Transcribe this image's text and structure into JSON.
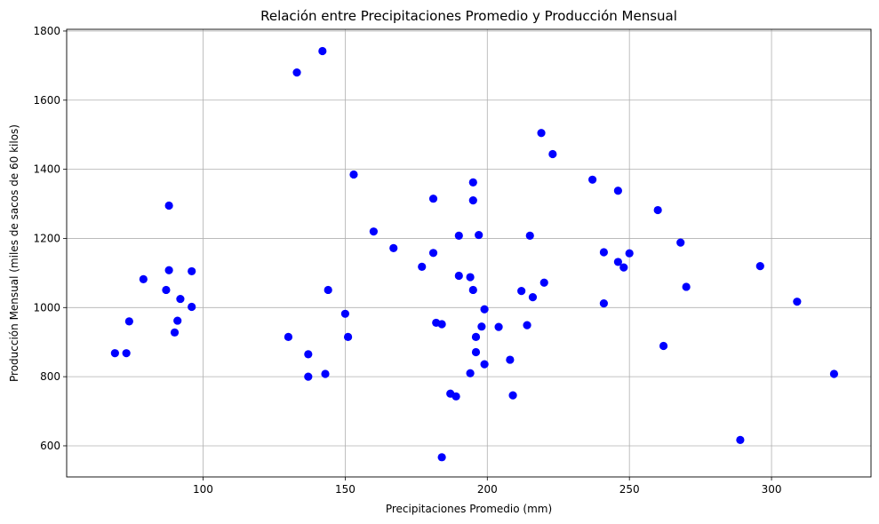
{
  "chart_data": {
    "type": "scatter",
    "title": "Relación entre Precipitaciones Promedio y Producción Mensual",
    "xlabel": "Precipitaciones Promedio (mm)",
    "ylabel": "Producción Mensual (miles de sacos de 60 kilos)",
    "xlim": [
      52,
      335
    ],
    "ylim": [
      510,
      1805
    ],
    "xticks": [
      100,
      150,
      200,
      250,
      300
    ],
    "yticks": [
      600,
      800,
      1000,
      1200,
      1400,
      1600,
      1800
    ],
    "grid": true,
    "color": "#0000ff",
    "points": [
      [
        69,
        868
      ],
      [
        73,
        868
      ],
      [
        74,
        960
      ],
      [
        79,
        1082
      ],
      [
        87,
        1051
      ],
      [
        88,
        1108
      ],
      [
        88,
        1295
      ],
      [
        90,
        928
      ],
      [
        91,
        962
      ],
      [
        92,
        1025
      ],
      [
        96,
        1105
      ],
      [
        96,
        1002
      ],
      [
        130,
        915
      ],
      [
        133,
        1680
      ],
      [
        137,
        800
      ],
      [
        137,
        865
      ],
      [
        142,
        1742
      ],
      [
        143,
        808
      ],
      [
        144,
        1051
      ],
      [
        150,
        982
      ],
      [
        151,
        915
      ],
      [
        153,
        1385
      ],
      [
        160,
        1220
      ],
      [
        167,
        1172
      ],
      [
        177,
        1118
      ],
      [
        181,
        1315
      ],
      [
        181,
        1158
      ],
      [
        182,
        956
      ],
      [
        184,
        952
      ],
      [
        184,
        567
      ],
      [
        187,
        751
      ],
      [
        189,
        743
      ],
      [
        190,
        1092
      ],
      [
        190,
        1208
      ],
      [
        194,
        1088
      ],
      [
        194,
        810
      ],
      [
        195,
        1051
      ],
      [
        195,
        1310
      ],
      [
        195,
        1362
      ],
      [
        196,
        915
      ],
      [
        196,
        871
      ],
      [
        197,
        1210
      ],
      [
        198,
        945
      ],
      [
        199,
        836
      ],
      [
        199,
        995
      ],
      [
        204,
        944
      ],
      [
        208,
        849
      ],
      [
        209,
        746
      ],
      [
        212,
        1048
      ],
      [
        214,
        949
      ],
      [
        215,
        1208
      ],
      [
        216,
        1030
      ],
      [
        219,
        1505
      ],
      [
        220,
        1072
      ],
      [
        223,
        1444
      ],
      [
        237,
        1370
      ],
      [
        241,
        1012
      ],
      [
        241,
        1160
      ],
      [
        246,
        1132
      ],
      [
        246,
        1338
      ],
      [
        248,
        1116
      ],
      [
        250,
        1157
      ],
      [
        260,
        1282
      ],
      [
        262,
        889
      ],
      [
        268,
        1188
      ],
      [
        270,
        1060
      ],
      [
        289,
        617
      ],
      [
        296,
        1120
      ],
      [
        309,
        1017
      ],
      [
        322,
        808
      ]
    ]
  }
}
